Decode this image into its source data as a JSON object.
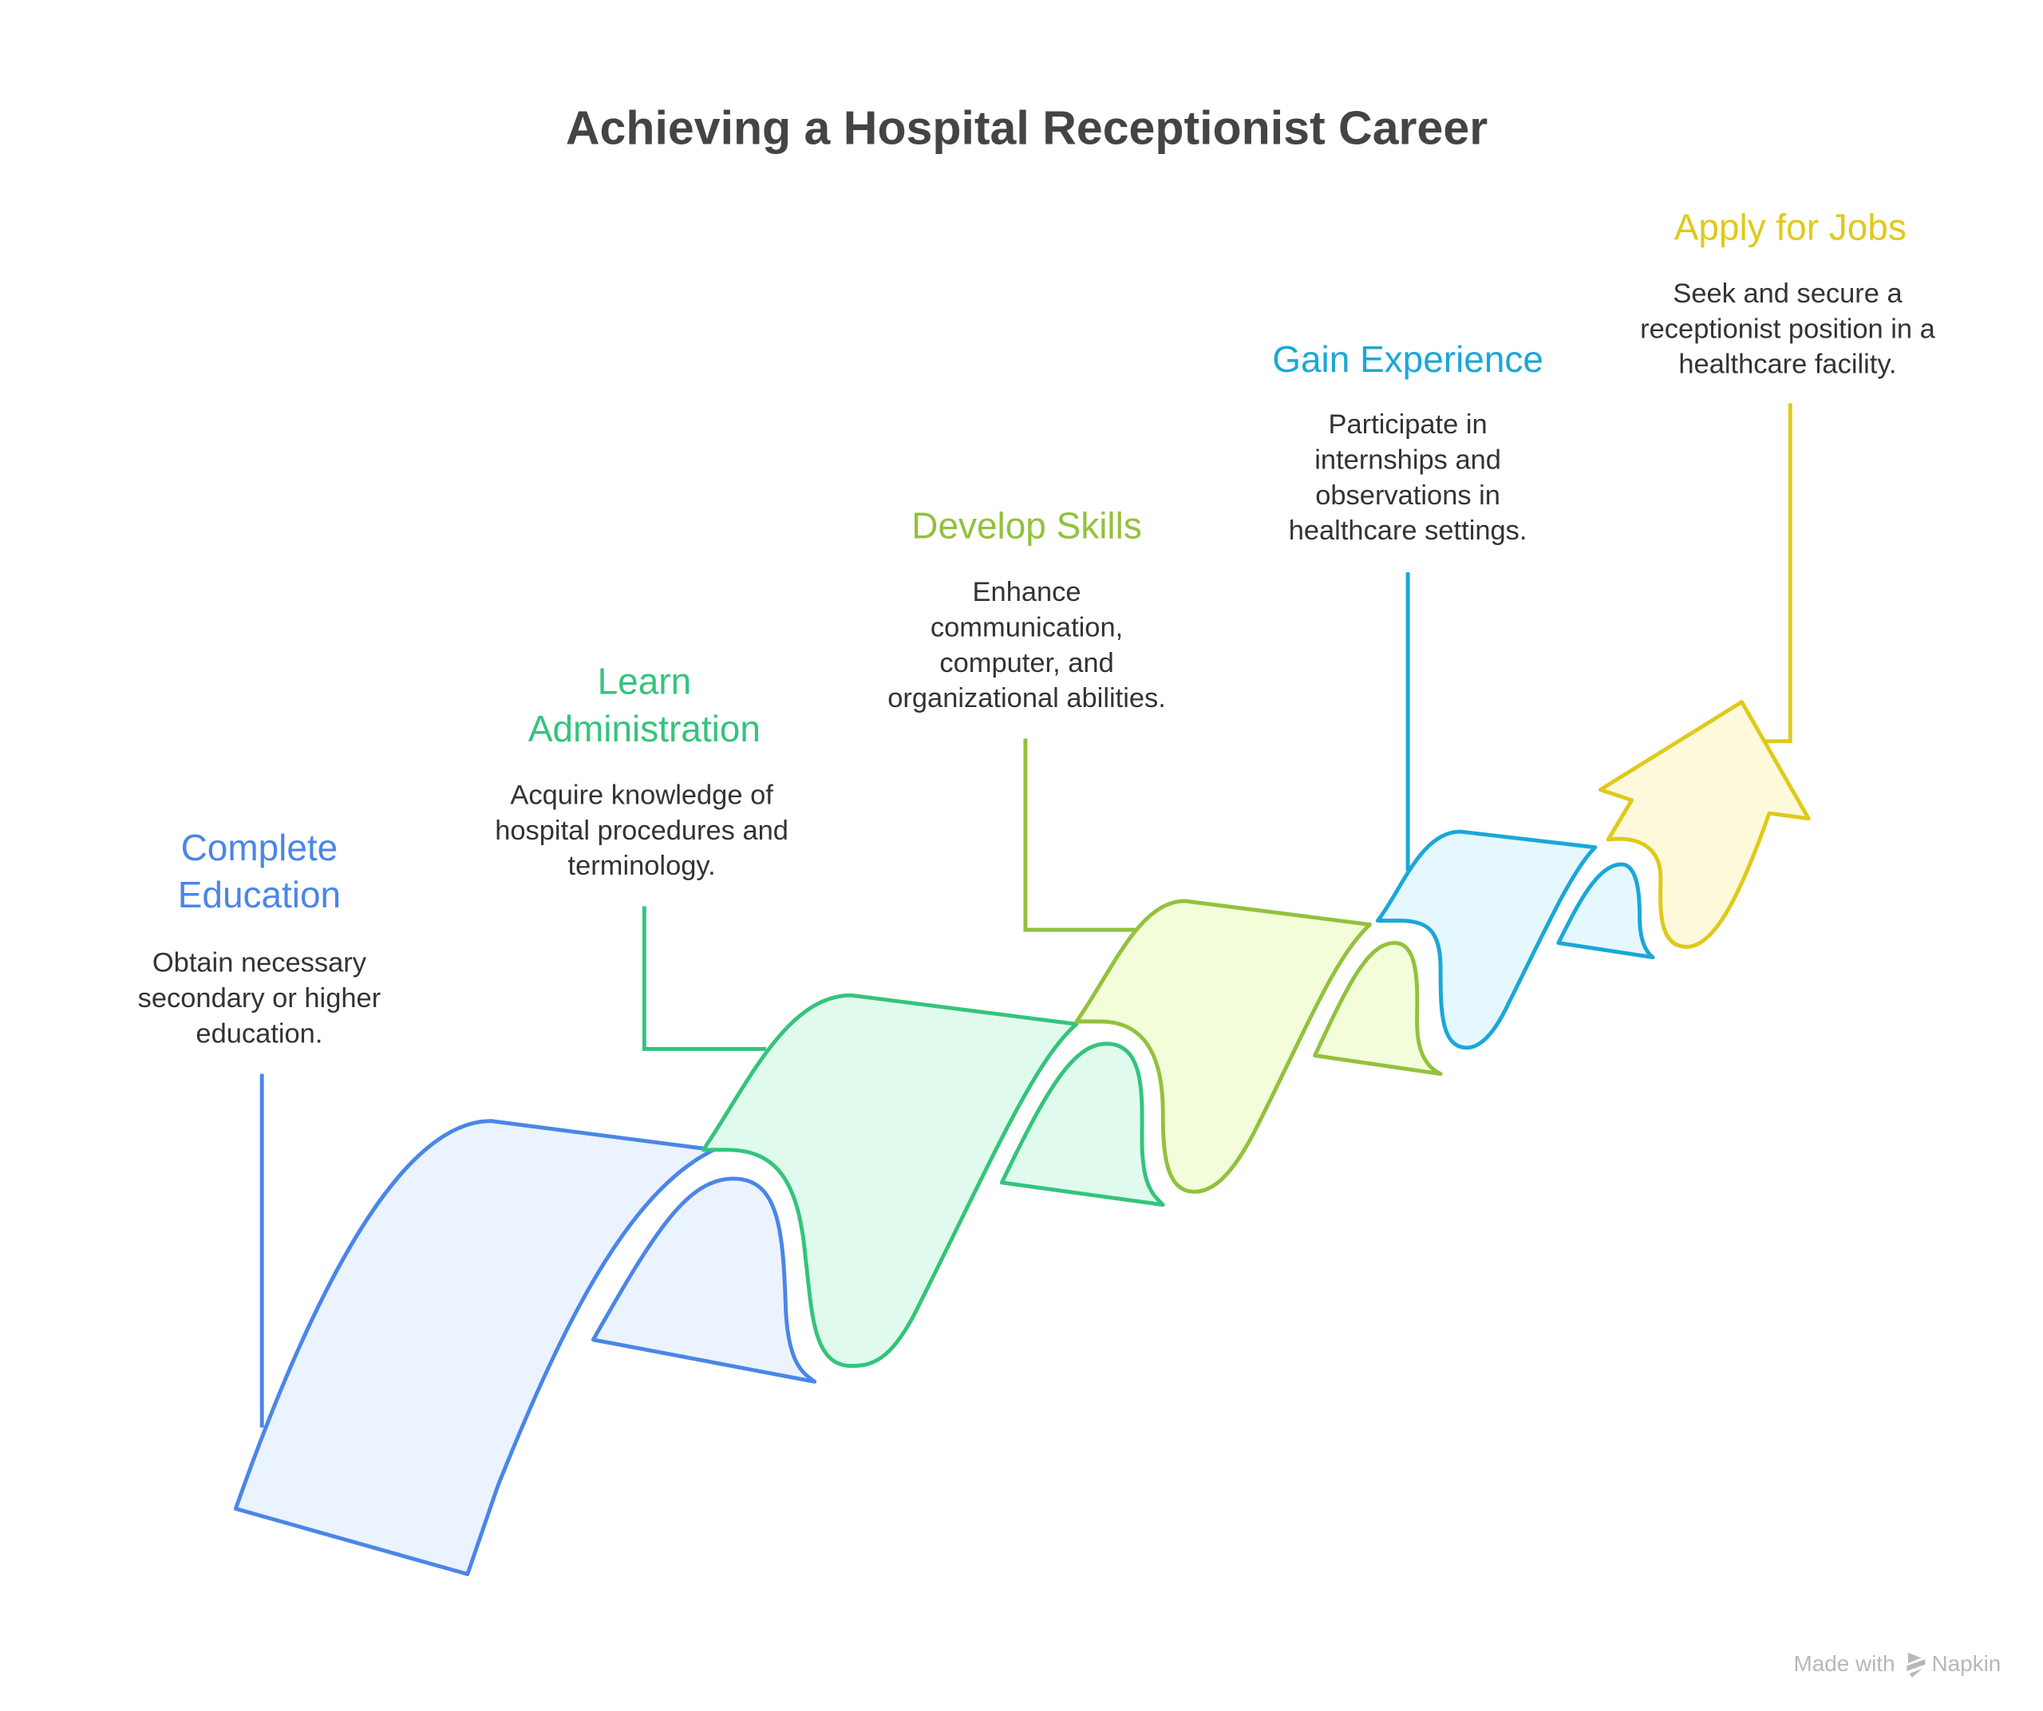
{
  "title": "Achieving a Hospital Receptionist Career",
  "steps": [
    {
      "heading": [
        "Complete",
        "Education"
      ],
      "body": [
        "Obtain necessary",
        "secondary or higher",
        "education."
      ],
      "color": "#4a86e8",
      "fill": "#ebf3ff"
    },
    {
      "heading": [
        "Learn",
        "Administration"
      ],
      "body": [
        "Acquire knowledge of",
        "hospital procedures and",
        "terminology."
      ],
      "color": "#34c47c",
      "fill": "#e0fbee"
    },
    {
      "heading": [
        "Develop Skills"
      ],
      "body": [
        "Enhance",
        "communication,",
        "computer, and",
        "organizational abilities."
      ],
      "color": "#93c13c",
      "fill": "#f3fdd9"
    },
    {
      "heading": [
        "Gain Experience"
      ],
      "body": [
        "Participate in",
        "internships and",
        "observations in",
        "healthcare settings."
      ],
      "color": "#1aa7d9",
      "fill": "#e6f8ff"
    },
    {
      "heading": [
        "Apply for Jobs"
      ],
      "body": [
        "Seek and secure a",
        "receptionist position in a",
        "healthcare facility."
      ],
      "color": "#e0c91a",
      "fill": "#fff9dc"
    }
  ],
  "watermark": {
    "prefix": "Made with",
    "brand": "Napkin",
    "icon": "napkin-logo-icon"
  }
}
